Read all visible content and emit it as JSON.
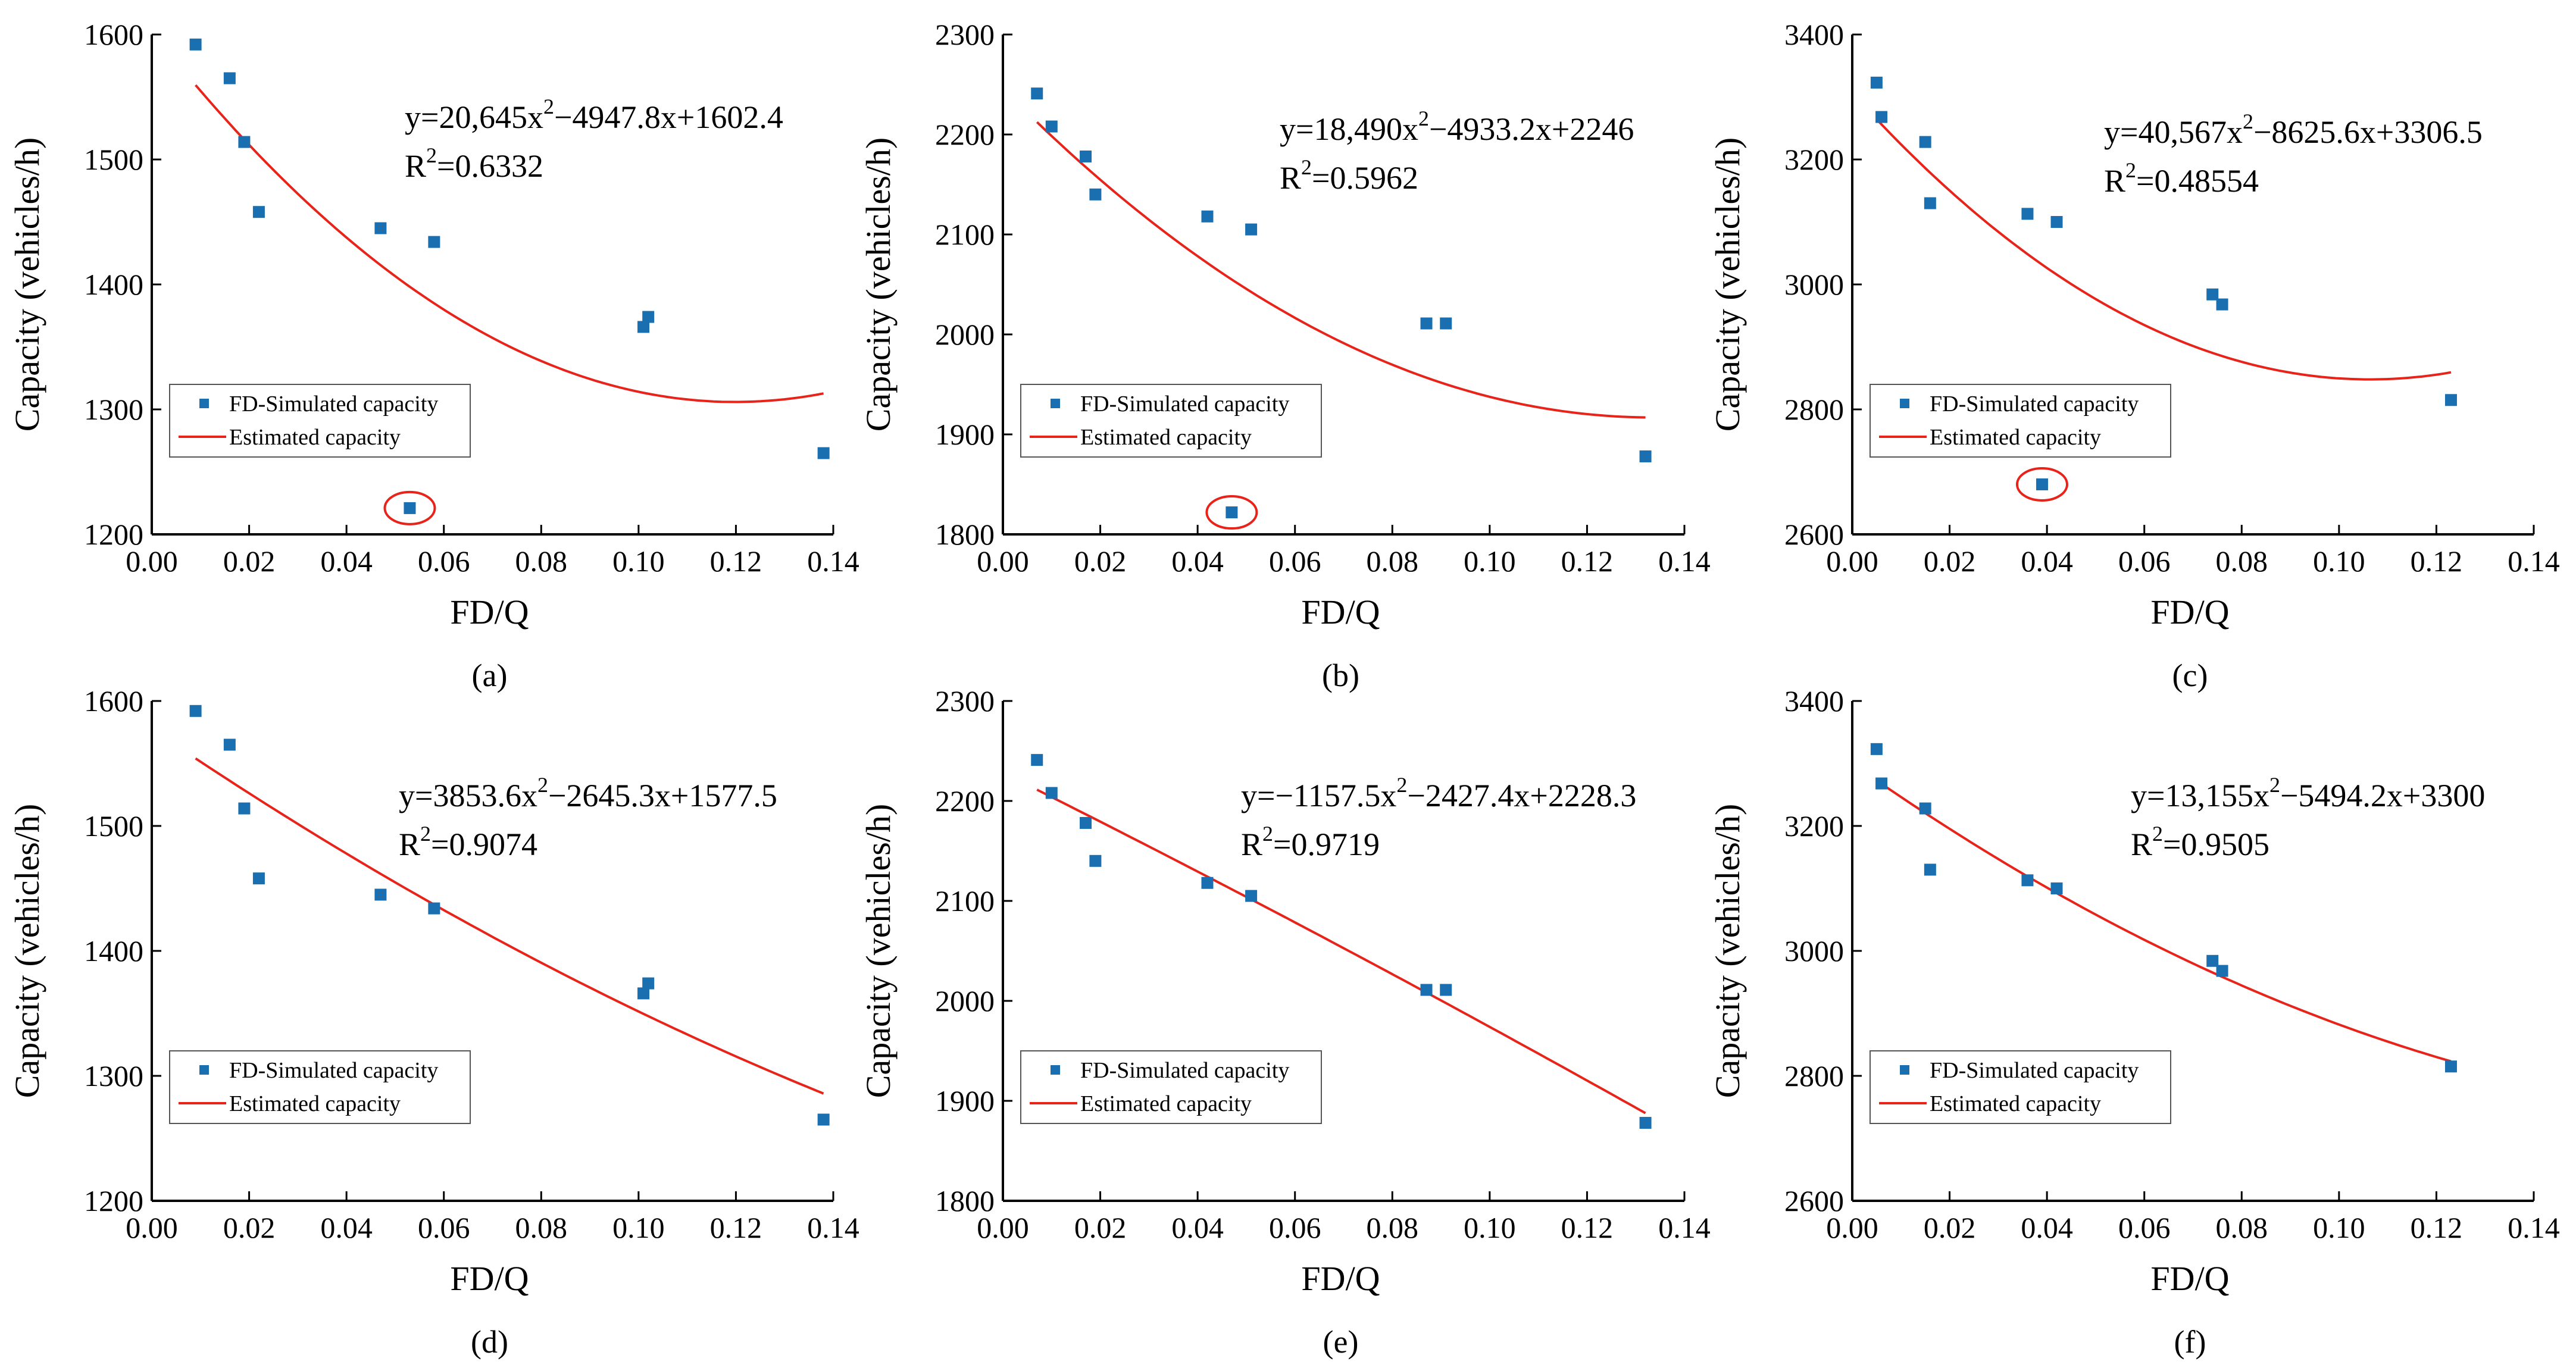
{
  "figure": {
    "legend_points_label": "FD-Simulated capacity",
    "legend_line_label": "Estimated capacity",
    "point_color": "#1a6fb0",
    "line_color": "#e8231a",
    "outlier_marker_color": "#e8231a"
  },
  "chart_data": [
    {
      "type": "scatter",
      "panel_label": "(a)",
      "xlabel": "FD/Q",
      "ylabel": "Capacity (vehicles/h)",
      "xlim": [
        0,
        0.14
      ],
      "ylim": [
        1200,
        1600
      ],
      "xticks": [
        "0.00",
        "0.02",
        "0.04",
        "0.06",
        "0.08",
        "0.10",
        "0.12",
        "0.14"
      ],
      "yticks": [
        "1200",
        "1300",
        "1400",
        "1500",
        "1600"
      ],
      "points": [
        [
          0.009,
          1592
        ],
        [
          0.016,
          1565
        ],
        [
          0.019,
          1514
        ],
        [
          0.022,
          1458
        ],
        [
          0.047,
          1445
        ],
        [
          0.058,
          1434
        ],
        [
          0.101,
          1366
        ],
        [
          0.102,
          1374
        ],
        [
          0.138,
          1265
        ],
        [
          0.053,
          1221
        ]
      ],
      "outlier_index": 9,
      "fit": {
        "a": 20645,
        "b": -4947.8,
        "c": 1602.4,
        "x_range": [
          0.009,
          0.138
        ]
      },
      "equation": {
        "prefix": "y=20,645x",
        "sup": "2",
        "rest": "−4947.8x+1602.4"
      },
      "r2": {
        "prefix": "R",
        "sup": "2",
        "value": "=0.6332"
      }
    },
    {
      "type": "scatter",
      "panel_label": "(b)",
      "xlabel": "FD/Q",
      "ylabel": "Capacity (vehicles/h)",
      "xlim": [
        0,
        0.14
      ],
      "ylim": [
        1800,
        2300
      ],
      "xticks": [
        "0.00",
        "0.02",
        "0.04",
        "0.06",
        "0.08",
        "0.10",
        "0.12",
        "0.14"
      ],
      "yticks": [
        "1800",
        "1900",
        "2000",
        "2100",
        "2200",
        "2300"
      ],
      "points": [
        [
          0.007,
          2241
        ],
        [
          0.01,
          2208
        ],
        [
          0.017,
          2178
        ],
        [
          0.019,
          2140
        ],
        [
          0.042,
          2118
        ],
        [
          0.051,
          2105
        ],
        [
          0.087,
          2011
        ],
        [
          0.091,
          2011
        ],
        [
          0.132,
          1878
        ],
        [
          0.047,
          1822
        ]
      ],
      "outlier_index": 9,
      "fit": {
        "a": 18490,
        "b": -4933.2,
        "c": 2246,
        "x_range": [
          0.007,
          0.132
        ]
      },
      "equation": {
        "prefix": "y=18,490x",
        "sup": "2",
        "rest": "−4933.2x+2246"
      },
      "r2": {
        "prefix": "R",
        "sup": "2",
        "value": "=0.5962"
      }
    },
    {
      "type": "scatter",
      "panel_label": "(c)",
      "xlabel": "FD/Q",
      "ylabel": "Capacity (vehicles/h)",
      "xlim": [
        0,
        0.14
      ],
      "ylim": [
        2600,
        3400
      ],
      "xticks": [
        "0.00",
        "0.02",
        "0.04",
        "0.06",
        "0.08",
        "0.10",
        "0.12",
        "0.14"
      ],
      "yticks": [
        "2600",
        "2800",
        "3000",
        "3200",
        "3400"
      ],
      "points": [
        [
          0.005,
          3323
        ],
        [
          0.006,
          3268
        ],
        [
          0.015,
          3228
        ],
        [
          0.016,
          3130
        ],
        [
          0.036,
          3113
        ],
        [
          0.042,
          3100
        ],
        [
          0.074,
          2984
        ],
        [
          0.076,
          2968
        ],
        [
          0.123,
          2815
        ],
        [
          0.039,
          2680
        ]
      ],
      "outlier_index": 9,
      "fit": {
        "a": 40567,
        "b": -8625.6,
        "c": 3306.5,
        "x_range": [
          0.005,
          0.123
        ]
      },
      "equation": {
        "prefix": "y=40,567x",
        "sup": "2",
        "rest": "−8625.6x+3306.5"
      },
      "r2": {
        "prefix": "R",
        "sup": "2",
        "value": "=0.48554"
      }
    },
    {
      "type": "scatter",
      "panel_label": "(d)",
      "xlabel": "FD/Q",
      "ylabel": "Capacity (vehicles/h)",
      "xlim": [
        0,
        0.14
      ],
      "ylim": [
        1200,
        1600
      ],
      "xticks": [
        "0.00",
        "0.02",
        "0.04",
        "0.06",
        "0.08",
        "0.10",
        "0.12",
        "0.14"
      ],
      "yticks": [
        "1200",
        "1300",
        "1400",
        "1500",
        "1600"
      ],
      "points": [
        [
          0.009,
          1592
        ],
        [
          0.016,
          1565
        ],
        [
          0.019,
          1514
        ],
        [
          0.022,
          1458
        ],
        [
          0.047,
          1445
        ],
        [
          0.058,
          1434
        ],
        [
          0.101,
          1366
        ],
        [
          0.102,
          1374
        ],
        [
          0.138,
          1265
        ]
      ],
      "outlier_index": -1,
      "fit": {
        "a": 3853.6,
        "b": -2645.3,
        "c": 1577.5,
        "x_range": [
          0.009,
          0.138
        ]
      },
      "equation": {
        "prefix": "y=3853.6x",
        "sup": "2",
        "rest": "−2645.3x+1577.5"
      },
      "r2": {
        "prefix": "R",
        "sup": "2",
        "value": "=0.9074"
      }
    },
    {
      "type": "scatter",
      "panel_label": "(e)",
      "xlabel": "FD/Q",
      "ylabel": "Capacity (vehicles/h)",
      "xlim": [
        0,
        0.14
      ],
      "ylim": [
        1800,
        2300
      ],
      "xticks": [
        "0.00",
        "0.02",
        "0.04",
        "0.06",
        "0.08",
        "0.10",
        "0.12",
        "0.14"
      ],
      "yticks": [
        "1800",
        "1900",
        "2000",
        "2100",
        "2200",
        "2300"
      ],
      "points": [
        [
          0.007,
          2241
        ],
        [
          0.01,
          2208
        ],
        [
          0.017,
          2178
        ],
        [
          0.019,
          2140
        ],
        [
          0.042,
          2118
        ],
        [
          0.051,
          2105
        ],
        [
          0.087,
          2011
        ],
        [
          0.091,
          2011
        ],
        [
          0.132,
          1878
        ]
      ],
      "outlier_index": -1,
      "fit": {
        "a": -1157.5,
        "b": -2427.4,
        "c": 2228.3,
        "x_range": [
          0.007,
          0.132
        ]
      },
      "equation": {
        "prefix": "y=−1157.5x",
        "sup": "2",
        "rest": "−2427.4x+2228.3"
      },
      "r2": {
        "prefix": "R",
        "sup": "2",
        "value": "=0.9719"
      }
    },
    {
      "type": "scatter",
      "panel_label": "(f)",
      "xlabel": "FD/Q",
      "ylabel": "Capacity (vehicles/h)",
      "xlim": [
        0,
        0.14
      ],
      "ylim": [
        2600,
        3400
      ],
      "xticks": [
        "0.00",
        "0.02",
        "0.04",
        "0.06",
        "0.08",
        "0.10",
        "0.12",
        "0.14"
      ],
      "yticks": [
        "2600",
        "2800",
        "3000",
        "3200",
        "3400"
      ],
      "points": [
        [
          0.005,
          3323
        ],
        [
          0.006,
          3268
        ],
        [
          0.015,
          3228
        ],
        [
          0.016,
          3130
        ],
        [
          0.036,
          3113
        ],
        [
          0.042,
          3100
        ],
        [
          0.074,
          2984
        ],
        [
          0.076,
          2968
        ],
        [
          0.123,
          2815
        ]
      ],
      "outlier_index": -1,
      "fit": {
        "a": 13155,
        "b": -5494.2,
        "c": 3300,
        "x_range": [
          0.005,
          0.123
        ]
      },
      "equation": {
        "prefix": "y=13,155x",
        "sup": "2",
        "rest": "−5494.2x+3300"
      },
      "r2": {
        "prefix": "R",
        "sup": "2",
        "value": "=0.9505"
      }
    }
  ]
}
